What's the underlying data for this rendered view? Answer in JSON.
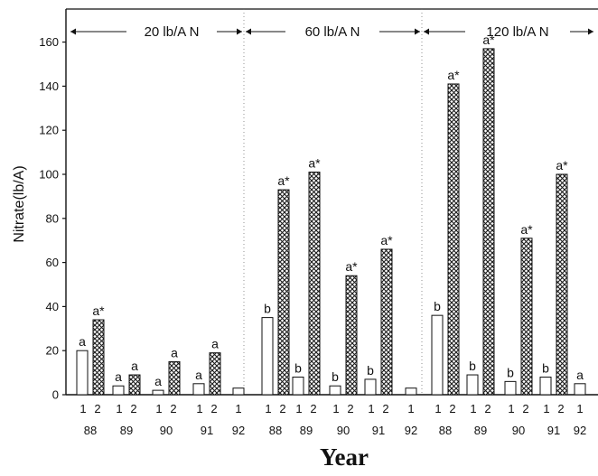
{
  "chart_data": {
    "type": "bar",
    "ylabel": "Nitrate(lb/A)",
    "xlabel": "Year",
    "ylim": [
      0,
      175
    ],
    "yticks": [
      0,
      20,
      40,
      60,
      80,
      100,
      120,
      140,
      160
    ],
    "colors": {
      "bar1": "#ffffff",
      "bar2_hatch": "#1a1a1a",
      "ink": "#111111"
    },
    "regions": [
      {
        "label": "20 lb/A N",
        "years": [
          "88",
          "89",
          "90",
          "91",
          "92"
        ]
      },
      {
        "label": "60 lb/A N",
        "years": [
          "88",
          "89",
          "90",
          "91",
          "92"
        ]
      },
      {
        "label": "120 lb/A N",
        "years": [
          "88",
          "89",
          "90",
          "91",
          "92"
        ]
      }
    ],
    "groups": [
      {
        "region": 0,
        "year": "88",
        "bars": [
          {
            "series": "1",
            "value": 20,
            "label": "a"
          },
          {
            "series": "2",
            "value": 34,
            "label": "a*"
          }
        ]
      },
      {
        "region": 0,
        "year": "89",
        "bars": [
          {
            "series": "1",
            "value": 4,
            "label": "a"
          },
          {
            "series": "2",
            "value": 9,
            "label": "a"
          }
        ]
      },
      {
        "region": 0,
        "year": "90",
        "bars": [
          {
            "series": "1",
            "value": 2,
            "label": "a"
          },
          {
            "series": "2",
            "value": 15,
            "label": "a"
          }
        ]
      },
      {
        "region": 0,
        "year": "91",
        "bars": [
          {
            "series": "1",
            "value": 5,
            "label": "a"
          },
          {
            "series": "2",
            "value": 19,
            "label": "a"
          }
        ]
      },
      {
        "region": 0,
        "year": "92",
        "bars": [
          {
            "series": "1",
            "value": 3,
            "label": ""
          }
        ]
      },
      {
        "region": 1,
        "year": "88",
        "bars": [
          {
            "series": "1",
            "value": 35,
            "label": "b"
          },
          {
            "series": "2",
            "value": 93,
            "label": "a*"
          }
        ]
      },
      {
        "region": 1,
        "year": "89",
        "bars": [
          {
            "series": "1",
            "value": 8,
            "label": "b"
          },
          {
            "series": "2",
            "value": 101,
            "label": "a*"
          }
        ]
      },
      {
        "region": 1,
        "year": "90",
        "bars": [
          {
            "series": "1",
            "value": 4,
            "label": "b"
          },
          {
            "series": "2",
            "value": 54,
            "label": "a*"
          }
        ]
      },
      {
        "region": 1,
        "year": "91",
        "bars": [
          {
            "series": "1",
            "value": 7,
            "label": "b"
          },
          {
            "series": "2",
            "value": 66,
            "label": "a*"
          }
        ]
      },
      {
        "region": 1,
        "year": "92",
        "bars": [
          {
            "series": "1",
            "value": 3,
            "label": ""
          }
        ]
      },
      {
        "region": 2,
        "year": "88",
        "bars": [
          {
            "series": "1",
            "value": 36,
            "label": "b"
          },
          {
            "series": "2",
            "value": 141,
            "label": "a*"
          }
        ]
      },
      {
        "region": 2,
        "year": "89",
        "bars": [
          {
            "series": "1",
            "value": 9,
            "label": "b"
          },
          {
            "series": "2",
            "value": 157,
            "label": "a*"
          }
        ]
      },
      {
        "region": 2,
        "year": "90",
        "bars": [
          {
            "series": "1",
            "value": 6,
            "label": "b"
          },
          {
            "series": "2",
            "value": 71,
            "label": "a*"
          }
        ]
      },
      {
        "region": 2,
        "year": "91",
        "bars": [
          {
            "series": "1",
            "value": 8,
            "label": "b"
          },
          {
            "series": "2",
            "value": 100,
            "label": "a*"
          }
        ]
      },
      {
        "region": 2,
        "year": "92",
        "bars": [
          {
            "series": "1",
            "value": 5,
            "label": "a"
          }
        ]
      }
    ]
  }
}
